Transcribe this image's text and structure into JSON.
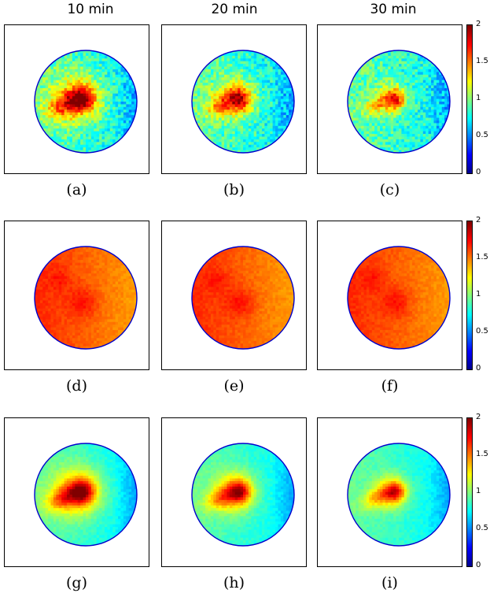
{
  "column_titles": [
    "10 min",
    "20 min",
    "30 min"
  ],
  "rows": [
    {
      "panels": [
        {
          "caption": "(a)",
          "field": "hot",
          "spread": 1.0,
          "intensity": 1.0
        },
        {
          "caption": "(b)",
          "field": "hot",
          "spread": 0.82,
          "intensity": 0.9
        },
        {
          "caption": "(c)",
          "field": "hot",
          "spread": 0.62,
          "intensity": 0.8
        }
      ]
    },
    {
      "panels": [
        {
          "caption": "(d)",
          "field": "uniform"
        },
        {
          "caption": "(e)",
          "field": "uniform"
        },
        {
          "caption": "(f)",
          "field": "uniform"
        }
      ]
    },
    {
      "panels": [
        {
          "caption": "(g)",
          "field": "smooth",
          "spread": 1.0,
          "intensity": 1.0
        },
        {
          "caption": "(h)",
          "field": "smooth",
          "spread": 0.85,
          "intensity": 0.92
        },
        {
          "caption": "(i)",
          "field": "smooth",
          "spread": 0.68,
          "intensity": 0.85
        }
      ]
    }
  ],
  "colorbar": {
    "ticks": [
      "2",
      "1.5",
      "1",
      "0.5",
      "0"
    ],
    "min": 0,
    "max": 2
  },
  "colors": {
    "circle_edge": "#0000cc"
  }
}
